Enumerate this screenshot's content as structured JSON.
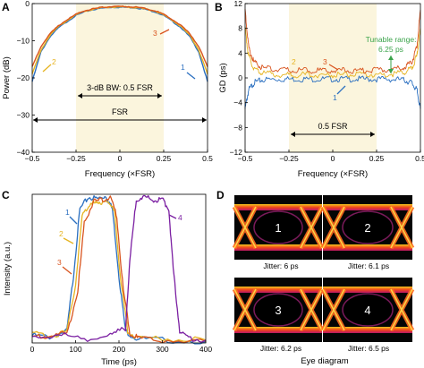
{
  "chart_data": [
    {
      "panel": "A",
      "type": "line",
      "xlabel": "Frequency (×FSR)",
      "ylabel": "Power (dB)",
      "xlim": [
        -0.5,
        0.5
      ],
      "ylim": [
        -40,
        0
      ],
      "xticks": [
        "−0.5",
        "−0.25",
        "0",
        "0.25",
        "0.5"
      ],
      "yticks": [
        "0",
        "−10",
        "−20",
        "−30",
        "−40"
      ],
      "shaded_region": [
        -0.25,
        0.25
      ],
      "annotations": [
        "3-dB BW: 0.5 FSR",
        "FSR"
      ],
      "series": [
        {
          "label": "1",
          "color": "#2a6fc0",
          "x": [
            -0.5,
            -0.45,
            -0.4,
            -0.35,
            -0.3,
            -0.25,
            -0.2,
            -0.15,
            -0.1,
            -0.05,
            0,
            0.05,
            0.1,
            0.15,
            0.2,
            0.25,
            0.3,
            0.35,
            0.4,
            0.45,
            0.5
          ],
          "y": [
            -21,
            -13,
            -9,
            -6.5,
            -4.8,
            -3.2,
            -2.2,
            -1.6,
            -1.2,
            -1,
            -1,
            -1,
            -1.2,
            -1.6,
            -2.2,
            -3.2,
            -4.8,
            -6.5,
            -9,
            -13,
            -21
          ]
        },
        {
          "label": "2",
          "color": "#e6b422",
          "x": [
            -0.5,
            -0.45,
            -0.4,
            -0.35,
            -0.3,
            -0.25,
            -0.2,
            -0.15,
            -0.1,
            -0.05,
            0,
            0.05,
            0.1,
            0.15,
            0.2,
            0.25,
            0.3,
            0.35,
            0.4,
            0.45,
            0.5
          ],
          "y": [
            -19,
            -12.5,
            -8.6,
            -6.2,
            -4.5,
            -3,
            -2,
            -1.5,
            -1.1,
            -0.9,
            -0.9,
            -0.9,
            -1.1,
            -1.5,
            -2,
            -3,
            -4.5,
            -6.2,
            -8.6,
            -12.5,
            -19
          ]
        },
        {
          "label": "3",
          "color": "#d9541e",
          "x": [
            -0.5,
            -0.45,
            -0.4,
            -0.35,
            -0.3,
            -0.25,
            -0.2,
            -0.15,
            -0.1,
            -0.05,
            0,
            0.05,
            0.1,
            0.15,
            0.2,
            0.25,
            0.3,
            0.35,
            0.4,
            0.45,
            0.5
          ],
          "y": [
            -17,
            -11.5,
            -8.2,
            -5.9,
            -4.3,
            -2.9,
            -1.9,
            -1.4,
            -1,
            -0.8,
            -0.8,
            -0.8,
            -1,
            -1.4,
            -1.9,
            -2.9,
            -4.3,
            -5.9,
            -8.2,
            -11.5,
            -17
          ]
        }
      ]
    },
    {
      "panel": "B",
      "type": "line",
      "xlabel": "Frequency (×FSR)",
      "ylabel": "GD (ps)",
      "xlim": [
        -0.5,
        0.5
      ],
      "ylim": [
        -12,
        12
      ],
      "xticks": [
        "−0.5",
        "−0.25",
        "0",
        "0.25",
        "0.5"
      ],
      "yticks": [
        "12",
        "8",
        "4",
        "0",
        "−4",
        "−8",
        "−12"
      ],
      "shaded_region": [
        -0.25,
        0.25
      ],
      "annotations": [
        "Tunable range:",
        "6.25 ps",
        "0.5 FSR"
      ],
      "series": [
        {
          "label": "1",
          "color": "#2a6fc0",
          "x": [
            -0.5,
            -0.48,
            -0.45,
            -0.4,
            -0.3,
            -0.2,
            -0.1,
            0,
            0.1,
            0.2,
            0.3,
            0.4,
            0.45,
            0.48,
            0.5
          ],
          "y": [
            -5,
            -2,
            -0.8,
            -0.3,
            -0.2,
            -0.2,
            -0.2,
            -0.2,
            -0.2,
            -0.2,
            -0.2,
            -0.3,
            -0.8,
            -2,
            -5
          ]
        },
        {
          "label": "2",
          "color": "#e6b422",
          "x": [
            -0.5,
            -0.48,
            -0.45,
            -0.4,
            -0.3,
            -0.2,
            -0.1,
            0,
            0.1,
            0.2,
            0.3,
            0.4,
            0.45,
            0.48,
            0.5
          ],
          "y": [
            8,
            3.5,
            1.5,
            0.8,
            0.5,
            0.5,
            0.5,
            0.5,
            0.5,
            0.5,
            0.5,
            0.8,
            1.5,
            3.5,
            8
          ]
        },
        {
          "label": "3",
          "color": "#d9541e",
          "x": [
            -0.5,
            -0.48,
            -0.45,
            -0.4,
            -0.3,
            -0.2,
            -0.1,
            0,
            0.1,
            0.2,
            0.3,
            0.4,
            0.45,
            0.48,
            0.5
          ],
          "y": [
            11,
            5,
            2.5,
            1.6,
            1.3,
            1.2,
            1.2,
            1.2,
            1.2,
            1.2,
            1.3,
            1.6,
            2.5,
            5,
            11
          ]
        }
      ]
    },
    {
      "panel": "C",
      "type": "line",
      "xlabel": "Time (ps)",
      "ylabel": "Intensity (a.u.)",
      "xlim": [
        0,
        400
      ],
      "ylim": [
        0,
        1
      ],
      "xticks": [
        "0",
        "100",
        "200",
        "300",
        "400"
      ],
      "series": [
        {
          "label": "1",
          "color": "#2a6fc0",
          "x": [
            0,
            40,
            80,
            95,
            110,
            130,
            150,
            170,
            185,
            200,
            215,
            240,
            300,
            400
          ],
          "y": [
            0.05,
            0.04,
            0.08,
            0.45,
            0.9,
            0.98,
            0.97,
            0.99,
            0.9,
            0.45,
            0.08,
            0.03,
            0.02,
            0.01
          ]
        },
        {
          "label": "2",
          "color": "#e6b422",
          "x": [
            0,
            40,
            80,
            100,
            115,
            135,
            150,
            170,
            190,
            205,
            220,
            240,
            300,
            400
          ],
          "y": [
            0.06,
            0.05,
            0.07,
            0.4,
            0.85,
            0.95,
            0.93,
            0.97,
            0.88,
            0.4,
            0.08,
            0.04,
            0.03,
            0.02
          ]
        },
        {
          "label": "3",
          "color": "#d9541e",
          "x": [
            0,
            40,
            80,
            105,
            120,
            140,
            160,
            180,
            195,
            210,
            225,
            245,
            300,
            400
          ],
          "y": [
            0.04,
            0.05,
            0.06,
            0.35,
            0.8,
            0.95,
            0.96,
            0.98,
            0.85,
            0.35,
            0.07,
            0.03,
            0.02,
            0.01
          ]
        },
        {
          "label": "4",
          "color": "#7b1fa2",
          "x": [
            0,
            60,
            120,
            180,
            215,
            225,
            240,
            260,
            280,
            300,
            315,
            325,
            340,
            360,
            400
          ],
          "y": [
            0.03,
            0.06,
            0.02,
            0.05,
            0.1,
            0.55,
            0.97,
            0.98,
            0.96,
            0.97,
            0.9,
            0.5,
            0.08,
            0.03,
            0.02
          ]
        }
      ]
    }
  ],
  "eye_diagram": {
    "panel": "D",
    "title": "Eye diagram",
    "cells": [
      {
        "num": "1",
        "jitter": "Jitter: 6 ps"
      },
      {
        "num": "2",
        "jitter": "Jitter: 6.1 ps"
      },
      {
        "num": "3",
        "jitter": "Jitter: 6.2 ps"
      },
      {
        "num": "4",
        "jitter": "Jitter: 6.5 ps"
      }
    ]
  },
  "panel_labels": [
    "A",
    "B",
    "C",
    "D"
  ],
  "colors": {
    "shade": "#fbf5dd",
    "s1": "#2a6fc0",
    "s2": "#e6b422",
    "s3": "#d9541e",
    "s4": "#7b1fa2",
    "tunable": "#3aa34a"
  }
}
